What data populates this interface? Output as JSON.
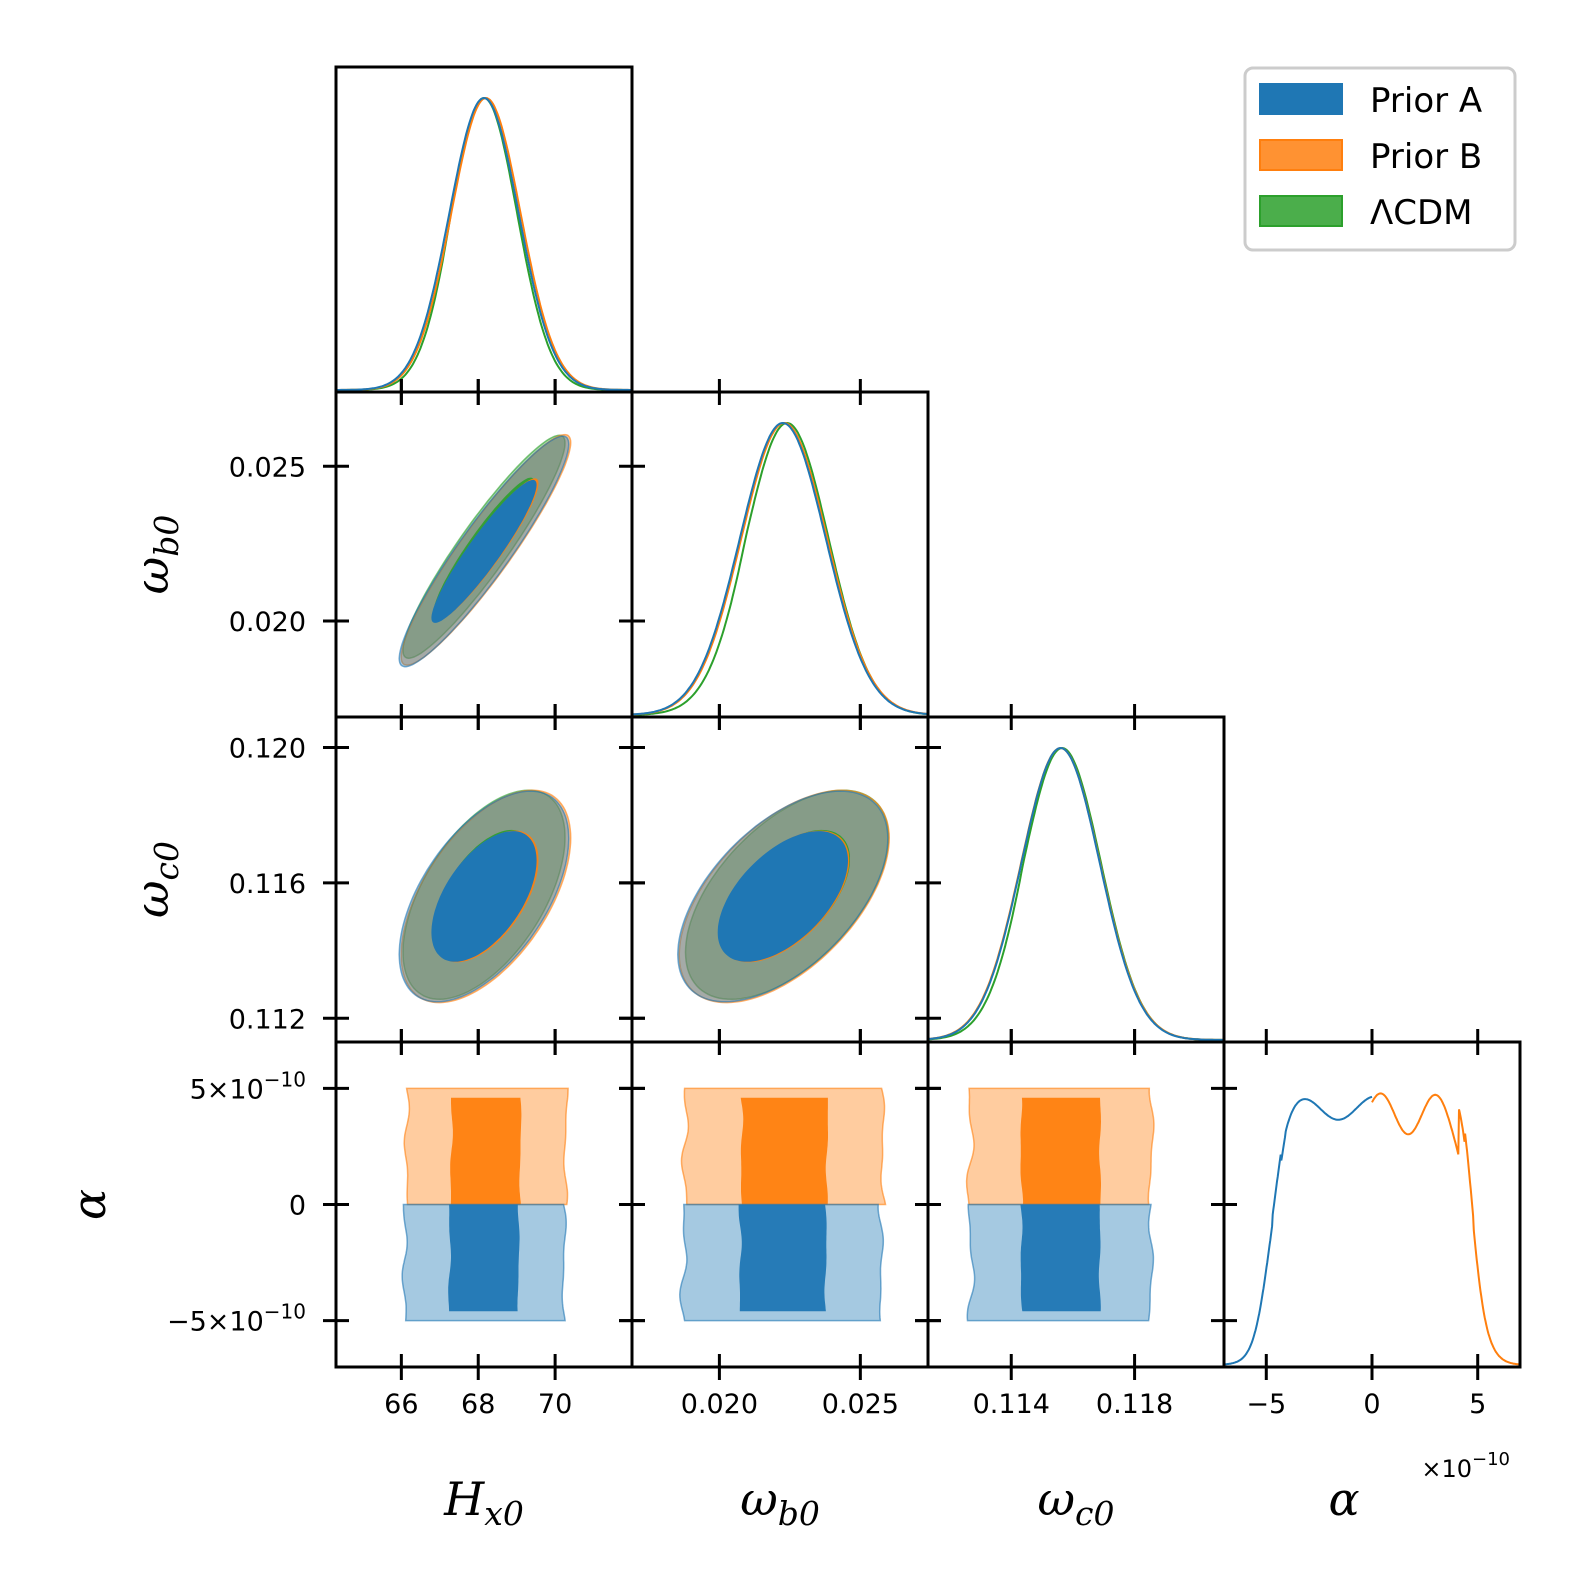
{
  "chart_data": {
    "type": "corner",
    "parameters": [
      {
        "key": "H",
        "label": "H",
        "sub": "x0",
        "range": [
          64.3,
          72.0
        ],
        "ticks": [
          66,
          68,
          70
        ],
        "tick_labels": [
          "66",
          "68",
          "70"
        ]
      },
      {
        "key": "wb",
        "label": "ω",
        "sub": "b0",
        "range": [
          0.0169,
          0.0274
        ],
        "ticks": [
          0.02,
          0.025
        ],
        "tick_labels": [
          "0.020",
          "0.025"
        ]
      },
      {
        "key": "wc",
        "label": "ω",
        "sub": "c0",
        "range": [
          0.1113,
          0.1209
        ],
        "ticks": [
          0.114,
          0.118
        ],
        "tick_labels": [
          "0.114",
          "0.118"
        ],
        "y_ticks": [
          0.112,
          0.116,
          0.12
        ],
        "y_tick_labels": [
          "0.112",
          "0.116",
          "0.120"
        ]
      },
      {
        "key": "a",
        "label": "α",
        "sub": "",
        "range": [
          -7e-10,
          7e-10
        ],
        "ticks": [
          -5e-10,
          0,
          5e-10
        ],
        "tick_labels": [
          "−5",
          "0",
          "5"
        ],
        "y_tick_labels": [
          "−5×10",
          "0",
          "5×10"
        ],
        "y_tick_exp": "−10",
        "x_offset_text": "×10",
        "x_offset_exp": "−10"
      }
    ],
    "wb_y_ticks": [
      0.02,
      0.025
    ],
    "wb_y_tick_labels": [
      "0.020",
      "0.025"
    ],
    "series": [
      {
        "name": "Prior A",
        "color": "#1f77b4",
        "alpha_range": [
          -5e-10,
          0
        ],
        "means": {
          "H": 68.15,
          "wb": 0.02225,
          "wc": 0.1156
        },
        "sigmas": {
          "H": 0.9,
          "wb": 0.00152,
          "wc": 0.00127
        }
      },
      {
        "name": "Prior B",
        "color": "#ff7f0e",
        "alpha_range": [
          0,
          5e-10
        ],
        "means": {
          "H": 68.2,
          "wb": 0.0223,
          "wc": 0.1156
        },
        "sigmas": {
          "H": 0.9,
          "wb": 0.00152,
          "wc": 0.00128
        }
      },
      {
        "name": "ΛCDM",
        "color": "#2ca02c",
        "means": {
          "H": 68.15,
          "wb": 0.0224,
          "wc": 0.11565
        },
        "sigmas": {
          "H": 0.86,
          "wb": 0.00147,
          "wc": 0.00126
        }
      }
    ],
    "correlations": {
      "H_wb": 0.93,
      "H_wc": 0.55,
      "wb_wc": 0.55
    },
    "contour_levels": [
      "68%",
      "95%"
    ],
    "legend": {
      "location": "top-right",
      "entries": [
        "Prior A",
        "Prior B",
        "ΛCDM"
      ]
    }
  }
}
